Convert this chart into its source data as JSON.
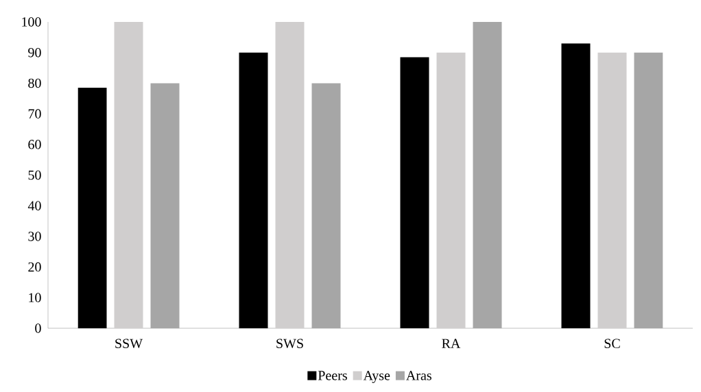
{
  "chart_data": {
    "type": "bar",
    "categories": [
      "SSW",
      "SWS",
      "RA",
      "SC"
    ],
    "series": [
      {
        "name": "Peers",
        "color": "#000000",
        "values": [
          78.5,
          90,
          88.5,
          93
        ]
      },
      {
        "name": "Ayse",
        "color": "#d0cece",
        "values": [
          100,
          100,
          90,
          90
        ]
      },
      {
        "name": "Aras",
        "color": "#a6a6a6",
        "values": [
          80,
          80,
          100,
          90
        ]
      }
    ],
    "ylim": [
      0,
      100
    ],
    "yticks": [
      0,
      10,
      20,
      30,
      40,
      50,
      60,
      70,
      80,
      90,
      100
    ],
    "grid": false,
    "legend": "bottom"
  }
}
